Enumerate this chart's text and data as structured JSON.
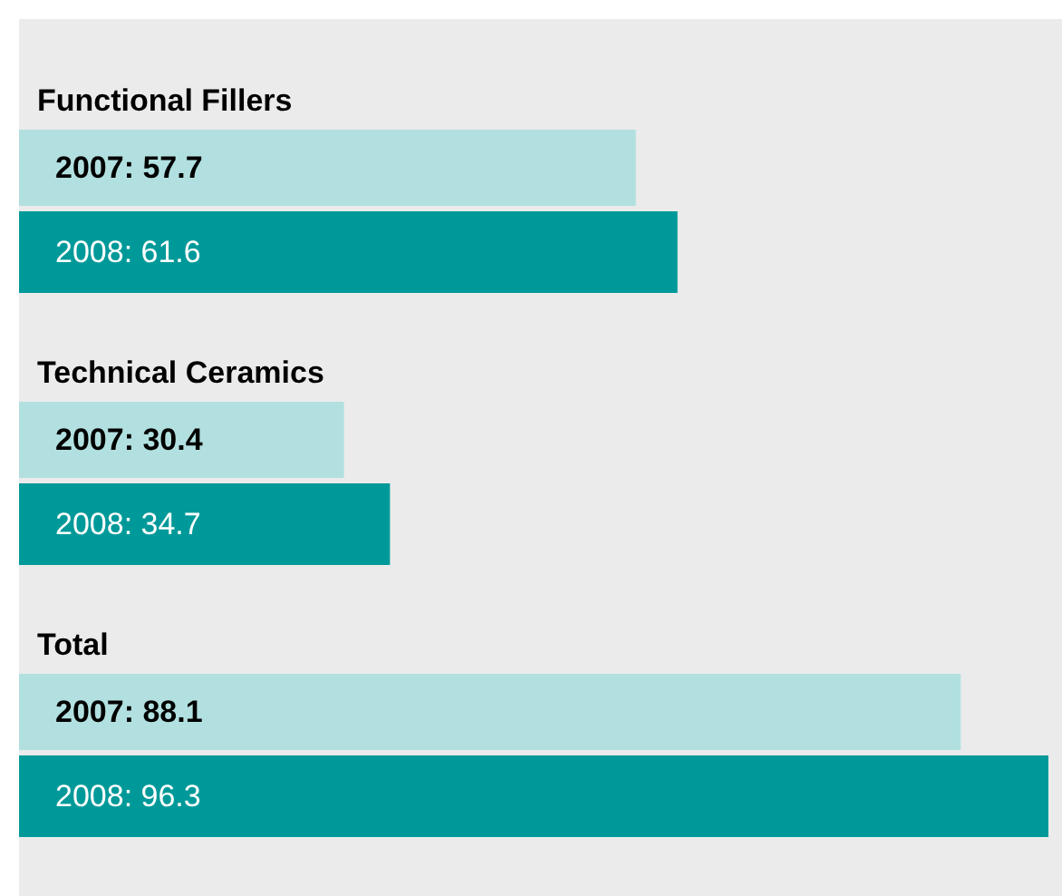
{
  "chart_data": {
    "type": "bar",
    "orientation": "horizontal",
    "categories": [
      "Functional Fillers",
      "Technical Ceramics",
      "Total"
    ],
    "series": [
      {
        "color": "#b2e0e0",
        "values": [
          57.7,
          30.4,
          88.1
        ],
        "value_labels": [
          "2007: 57.7",
          "2007: 30.4",
          "2007: 88.1"
        ]
      },
      {
        "color": "#009999",
        "values": [
          61.6,
          34.7,
          96.3
        ],
        "value_labels": [
          "2008: 61.6",
          "2008: 34.7",
          "2008: 96.3"
        ]
      }
    ],
    "grid": false,
    "tick_labels": false
  }
}
